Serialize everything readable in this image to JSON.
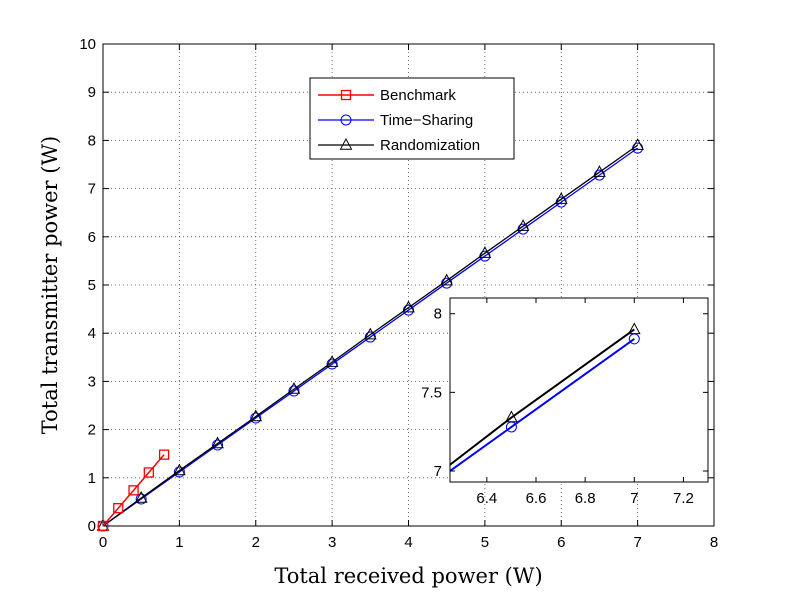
{
  "chart_data": {
    "type": "line",
    "title": "",
    "xlabel": "Total received power (W)",
    "ylabel": "Total transmitter power (W)",
    "xlim": [
      0,
      8
    ],
    "ylim": [
      0,
      10
    ],
    "xticks": [
      "0",
      "1",
      "2",
      "3",
      "4",
      "5",
      "6",
      "7",
      "8"
    ],
    "yticks": [
      "0",
      "1",
      "2",
      "3",
      "4",
      "5",
      "6",
      "7",
      "8",
      "9",
      "10"
    ],
    "grid": true,
    "legend_position": "top-center",
    "series": [
      {
        "name": "Benchmark",
        "color": "#ff0000",
        "marker": "square",
        "x": [
          0,
          0.2,
          0.4,
          0.6,
          0.8
        ],
        "y": [
          0,
          0.37,
          0.74,
          1.11,
          1.48
        ]
      },
      {
        "name": "Time−Sharing",
        "color": "#0000ff",
        "marker": "circle",
        "x": [
          0,
          0.5,
          1,
          1.5,
          2,
          2.5,
          3,
          3.5,
          4,
          4.5,
          5,
          5.5,
          6,
          6.5,
          7
        ],
        "y": [
          0,
          0.56,
          1.12,
          1.68,
          2.24,
          2.8,
          3.36,
          3.92,
          4.48,
          5.04,
          5.6,
          6.16,
          6.72,
          7.28,
          7.84
        ]
      },
      {
        "name": "Randomization",
        "color": "#000000",
        "marker": "triangle",
        "x": [
          0,
          0.5,
          1,
          1.5,
          2,
          2.5,
          3,
          3.5,
          4,
          4.5,
          5,
          5.5,
          6,
          6.5,
          7
        ],
        "y": [
          0,
          0.58,
          1.15,
          1.71,
          2.27,
          2.84,
          3.4,
          3.97,
          4.53,
          5.09,
          5.66,
          6.22,
          6.78,
          7.34,
          7.9
        ]
      }
    ],
    "inset": {
      "xlim": [
        6.25,
        7.3
      ],
      "ylim": [
        6.93,
        8.1
      ],
      "xticks": [
        "6.4",
        "6.6",
        "6.8",
        "7",
        "7.2"
      ],
      "yticks": [
        "7",
        "7.5",
        "8"
      ],
      "grid": false,
      "series": [
        {
          "name": "Time−Sharing",
          "x": [
            6.25,
            6.5,
            7
          ],
          "y": [
            7.0,
            7.28,
            7.84
          ]
        },
        {
          "name": "Randomization",
          "x": [
            6.25,
            6.5,
            7
          ],
          "y": [
            7.04,
            7.34,
            7.9
          ]
        }
      ]
    }
  }
}
